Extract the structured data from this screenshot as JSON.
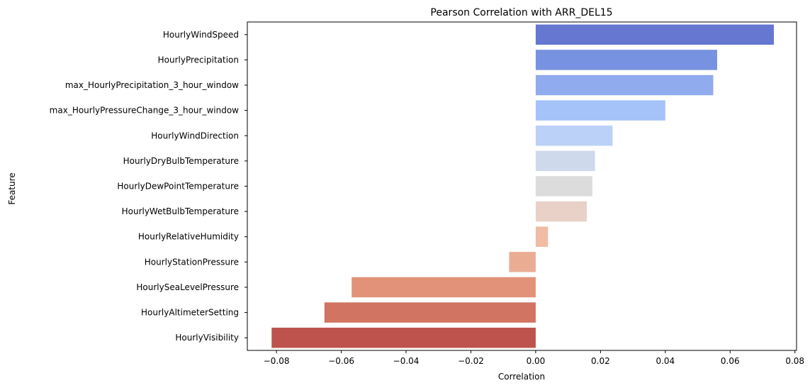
{
  "chart_data": {
    "type": "bar",
    "orientation": "horizontal",
    "title": "Pearson Correlation with ARR_DEL15",
    "xlabel": "Correlation",
    "ylabel": "Feature",
    "xlim": [
      -0.089,
      0.0805
    ],
    "xticks": [
      -0.08,
      -0.06,
      -0.04,
      -0.02,
      0.0,
      0.02,
      0.04,
      0.06,
      0.08
    ],
    "xtick_labels": [
      "−0.08",
      "−0.06",
      "−0.04",
      "−0.02",
      "0.00",
      "0.02",
      "0.04",
      "0.06",
      "0.08"
    ],
    "grid": false,
    "palette": "coolwarm",
    "categories": [
      "HourlyWindSpeed",
      "HourlyPrecipitation",
      "max_HourlyPrecipitation_3_hour_window",
      "max_HourlyPressureChange_3_hour_window",
      "HourlyWindDirection",
      "HourlyDryBulbTemperature",
      "HourlyDewPointTemperature",
      "HourlyWetBulbTemperature",
      "HourlyRelativeHumidity",
      "HourlyStationPressure",
      "HourlySeaLevelPressure",
      "HourlyAltimeterSetting",
      "HourlyVisibility"
    ],
    "values": [
      0.0735,
      0.056,
      0.0548,
      0.04,
      0.0237,
      0.0183,
      0.0175,
      0.0158,
      0.0038,
      -0.0082,
      -0.0568,
      -0.0652,
      -0.0815
    ],
    "colors": [
      "#6577d0",
      "#7692e0",
      "#90abee",
      "#a5c2f9",
      "#bbd1f7",
      "#cfd9ec",
      "#dcdcdd",
      "#e9d1c7",
      "#f0bca4",
      "#eaad94",
      "#e29278",
      "#d17461",
      "#bd534c"
    ]
  }
}
